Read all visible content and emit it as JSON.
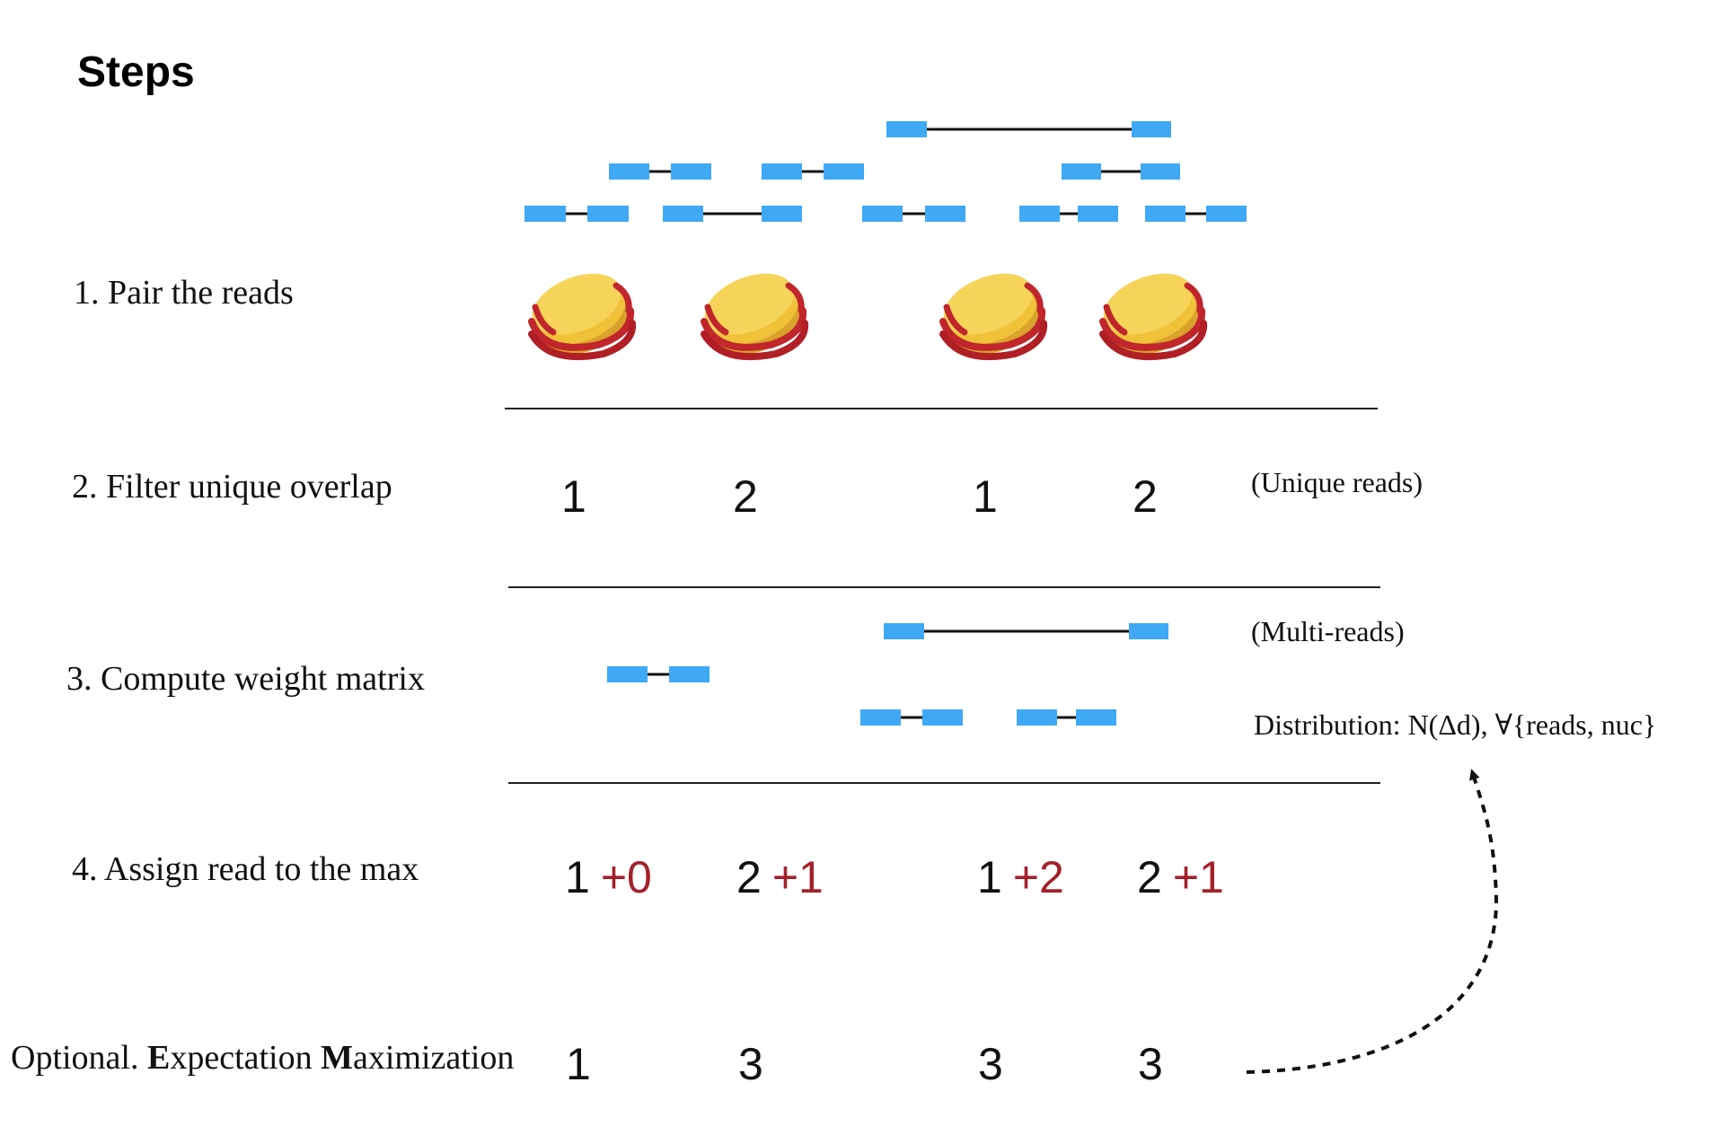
{
  "title": "Steps",
  "colors": {
    "read": "#3fa9f5",
    "linker": "#111111",
    "increment": "#a3212b",
    "nucleosome_fill": "#f0c23a",
    "nucleosome_dna": "#c0262c"
  },
  "icons": [
    "nucleosome-icon",
    "dashed-arrow-icon"
  ],
  "steps": [
    {
      "label": "1. Pair the reads"
    },
    {
      "label": "2. Filter unique overlap",
      "values": [
        "1",
        "2",
        "1",
        "2"
      ],
      "note": "(Unique reads)"
    },
    {
      "label": "3. Compute weight matrix",
      "note": "(Multi-reads)",
      "distribution": "Distribution: N(Δd), ∀{reads, nuc}"
    },
    {
      "label": "4. Assign read to the max",
      "values": [
        {
          "base": "1",
          "increment": "+0"
        },
        {
          "base": "2",
          "increment": "+1"
        },
        {
          "base": "1",
          "increment": "+2"
        },
        {
          "base": "2",
          "increment": "+1"
        }
      ]
    },
    {
      "label_parts": [
        "Optional. ",
        "E",
        "xpectation ",
        "M",
        "aximization"
      ],
      "values": [
        "1",
        "3",
        "3",
        "3"
      ]
    }
  ]
}
